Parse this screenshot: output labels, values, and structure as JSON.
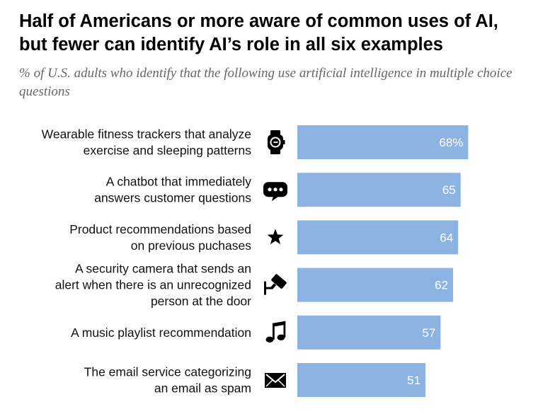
{
  "title": "Half of Americans or more aware of common uses of AI, but fewer can identify AI’s role in all six examples",
  "subtitle": "% of U.S. adults who identify that the following use artificial intelligence in multiple choice questions",
  "colors": {
    "bar": "#8db3e2",
    "value_text": "#ffffff",
    "label_text": "#111111",
    "icon": "#000000"
  },
  "chart_data": {
    "type": "bar",
    "orientation": "horizontal",
    "categories": [
      [
        "Wearable fitness trackers that analyze",
        "exercise and sleeping patterns"
      ],
      [
        "A chatbot that immediately",
        "answers customer questions"
      ],
      [
        "Product recommendations based",
        "on previous puchases"
      ],
      [
        "A security camera that sends an",
        "alert when there is an unrecognized",
        "person at the door"
      ],
      [
        "A music playlist recommendation"
      ],
      [
        "The email service categorizing",
        "an email as spam"
      ]
    ],
    "icons": [
      "smartwatch-icon",
      "chat-bubble-icon",
      "star-icon",
      "security-camera-icon",
      "music-note-icon",
      "envelope-icon"
    ],
    "values": [
      68,
      65,
      64,
      62,
      57,
      51
    ],
    "value_labels": [
      "68%",
      "65",
      "64",
      "62",
      "57",
      "51"
    ],
    "xlim": [
      0,
      100
    ],
    "grid": false,
    "legend": "none"
  }
}
